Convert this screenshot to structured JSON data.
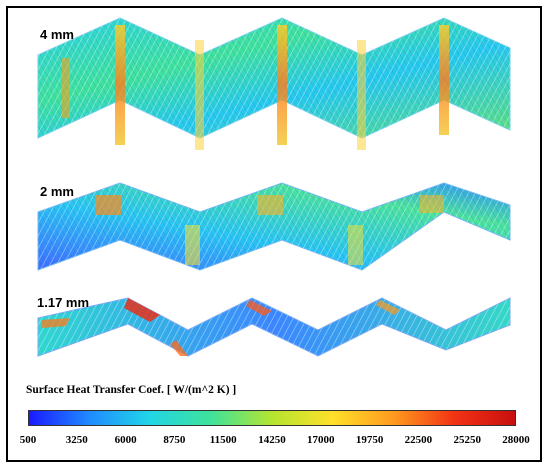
{
  "panels": [
    {
      "label": "4 mm"
    },
    {
      "label": "2 mm"
    },
    {
      "label": "1.17 mm"
    }
  ],
  "colorbar": {
    "title": "Surface Heat Transfer Coef. [ W/(m^2 K) ]",
    "ticks": [
      "500",
      "3250",
      "6000",
      "8750",
      "11500",
      "14250",
      "17000",
      "19750",
      "22500",
      "25250",
      "28000"
    ],
    "colors": [
      "#1a1aff",
      "#1f8cff",
      "#21d6e6",
      "#3fe29a",
      "#b5e52f",
      "#ffe02a",
      "#ff9a1f",
      "#f23314",
      "#c80f0f"
    ]
  }
}
